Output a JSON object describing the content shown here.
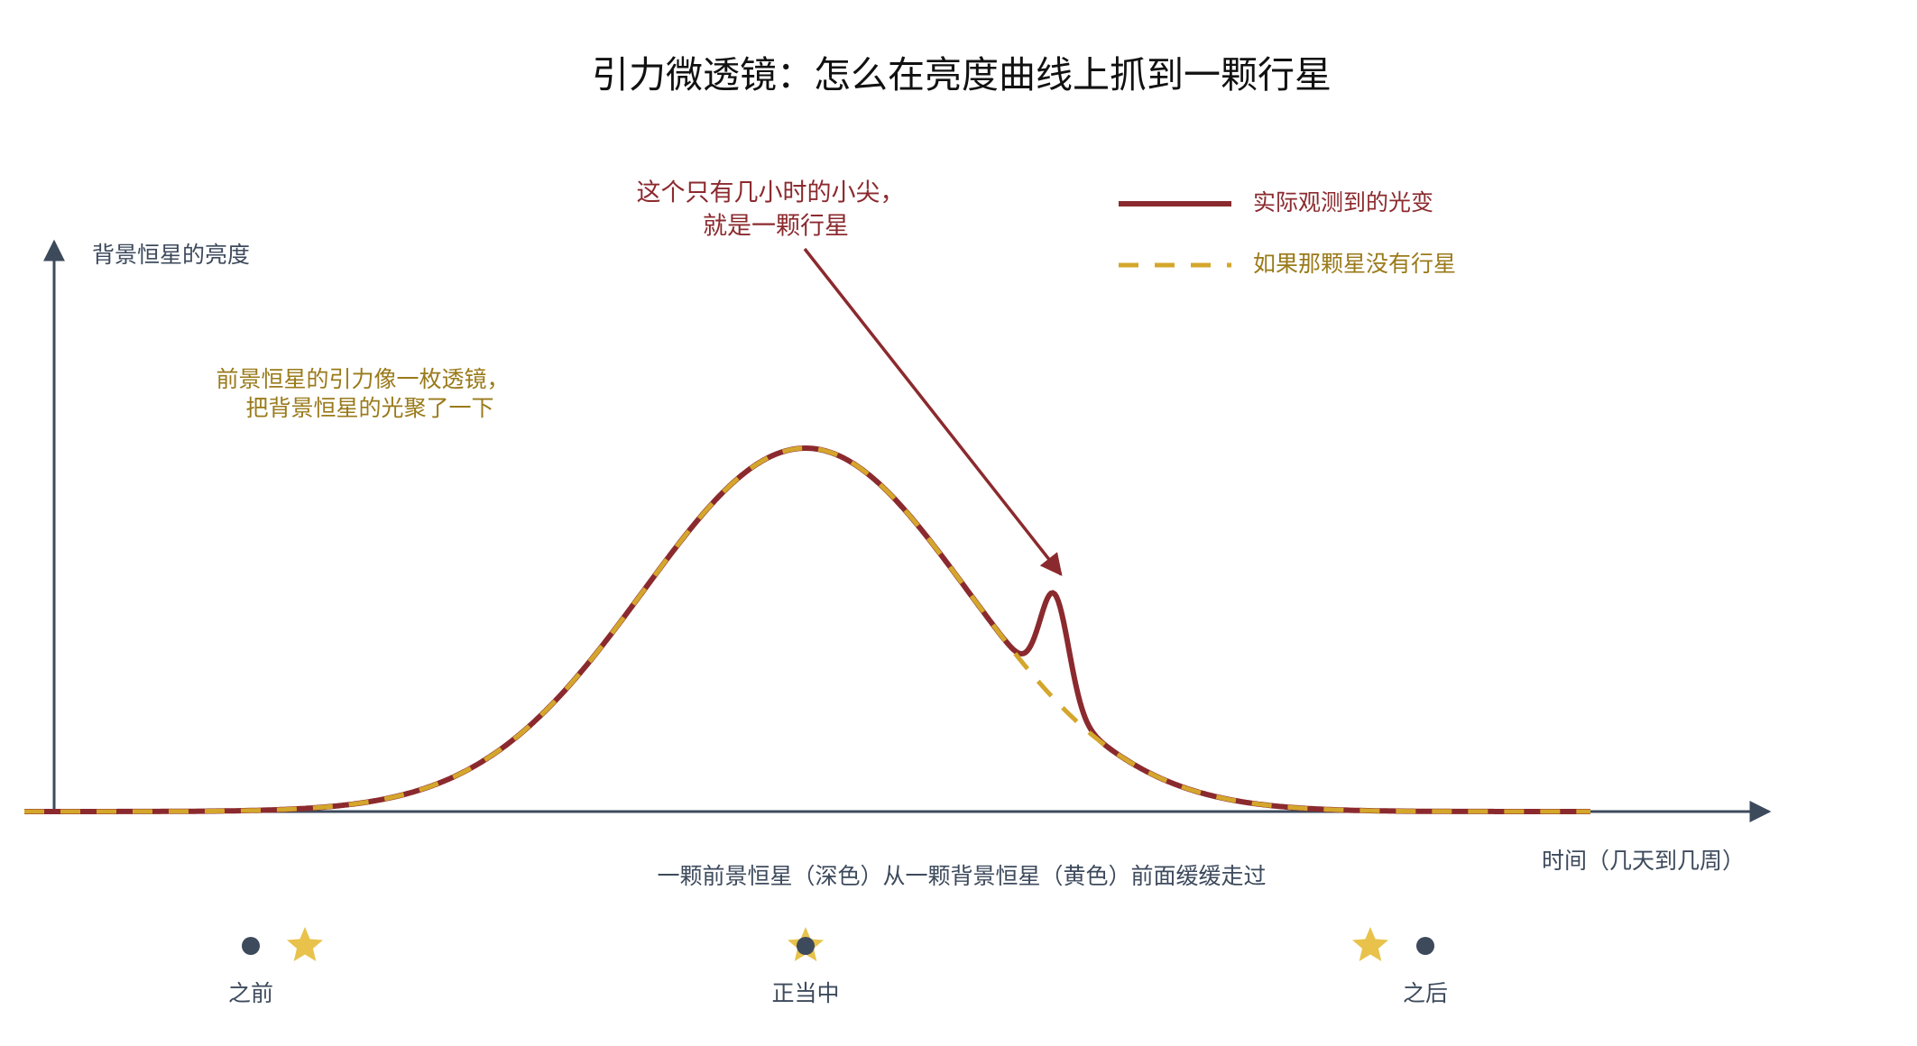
{
  "title": "引力微透镜：怎么在亮度曲线上抓到一颗行星",
  "y_axis_label": "背景恒星的亮度",
  "x_axis_label": "时间（几天到几周）",
  "legend": [
    "实际观测到的光变",
    "如果那颗星没有行星"
  ],
  "annotations": {
    "lens": [
      "前景恒星的引力像一枚透镜，",
      "把背景恒星的光聚了一下"
    ],
    "planet": [
      "这个只有几小时的小尖，",
      "就是一颗行星"
    ]
  },
  "caption": "一颗前景恒星（深色）从一颗背景恒星（黄色）前面缓缓走过",
  "positions": [
    "之前",
    "正当中",
    "之后"
  ]
}
